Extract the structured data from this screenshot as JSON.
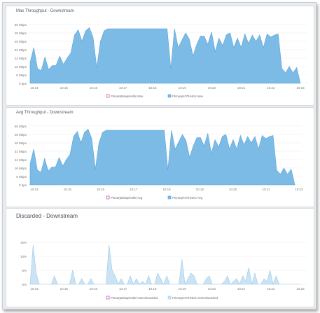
{
  "colors": {
    "accent": "#6fb2e2",
    "accent_fill": "#7cbbe6",
    "accent_light": "#cbe3f3",
    "legend_primary": "#c65ac7",
    "grid": "#eceef1",
    "axis_text": "#777"
  },
  "chart_data": [
    {
      "type": "area",
      "title": "Max Throughput - Downstream",
      "y_ticks": [
        "0 bps",
        "8 Mbps",
        "16 Mbps",
        "24 Mbps",
        "32 Mbps",
        "40 Mbps",
        "48 Mbps",
        "56 Mbps"
      ],
      "x_ticks": [
        "10:14",
        "10:15",
        "10:16",
        "10:17",
        "10:18",
        "10:19",
        "10:20",
        "10:21",
        "10:22",
        "10:23"
      ],
      "ylim": [
        0,
        56
      ],
      "series": [
        {
          "name": "PrimaryBelapriHdmi Max",
          "values": []
        },
        {
          "name": "PrimaryHOTHistric Max",
          "values": [
            20,
            34,
            14,
            12,
            25,
            13,
            17,
            17,
            26,
            18,
            24,
            29,
            46,
            51,
            40,
            50,
            53,
            44,
            15,
            40,
            50,
            52,
            52,
            52,
            52,
            52,
            52,
            52,
            52,
            52,
            52,
            52,
            52,
            52,
            52,
            52,
            52,
            52,
            14,
            52,
            34,
            41,
            48,
            42,
            26,
            37,
            45,
            45,
            37,
            49,
            30,
            43,
            36,
            46,
            48,
            34,
            43,
            34,
            47,
            38,
            46,
            40,
            46,
            34,
            47,
            44,
            46,
            47,
            14,
            10,
            16,
            10,
            15,
            0
          ]
        }
      ]
    },
    {
      "type": "area",
      "title": "Avg Throughput - Downstream",
      "y_ticks": [
        "0 bps",
        "8 Mbps",
        "16 Mbps",
        "24 Mbps",
        "32 Mbps",
        "40 Mbps",
        "48 Mbps",
        "56 Mbps"
      ],
      "x_ticks": [
        "10:14",
        "10:15",
        "10:16",
        "10:17",
        "10:18",
        "10:19",
        "10:20",
        "10:21",
        "10:22"
      ],
      "ylim": [
        0,
        56
      ],
      "series": [
        {
          "name": "PrimaryBelapriHdmi Avg",
          "values": []
        },
        {
          "name": "PrimaryHOTHistric Avg",
          "values": [
            20,
            34,
            14,
            12,
            25,
            13,
            17,
            17,
            26,
            18,
            24,
            29,
            46,
            51,
            40,
            50,
            53,
            44,
            15,
            40,
            50,
            52,
            52,
            52,
            52,
            52,
            52,
            52,
            52,
            52,
            52,
            52,
            52,
            52,
            52,
            52,
            52,
            52,
            14,
            52,
            34,
            41,
            48,
            42,
            26,
            37,
            45,
            45,
            37,
            49,
            30,
            43,
            36,
            46,
            48,
            34,
            43,
            34,
            47,
            38,
            46,
            40,
            46,
            34,
            47,
            44,
            46,
            47,
            14,
            10,
            16,
            10,
            15,
            0
          ]
        }
      ]
    },
    {
      "type": "area",
      "title": "Discarded - Downstream",
      "y_ticks": [
        "0%",
        "5%",
        "10%",
        "15%"
      ],
      "x_ticks": [
        "10:14",
        "10:15",
        "10:16",
        "10:17",
        "10:18",
        "10:19",
        "10:20",
        "10:21",
        "10:22",
        "10:23"
      ],
      "ylim": [
        0,
        15
      ],
      "series": [
        {
          "name": "PrimaryBelapriHdmi Gets Discarded",
          "values": []
        },
        {
          "name": "PrimaryHOTHistric Gets Discarded",
          "values": [
            0,
            14,
            4,
            0,
            0,
            0,
            0,
            0,
            3,
            0,
            0,
            0,
            0,
            0,
            5,
            0,
            0,
            2,
            0,
            0,
            2,
            0,
            0,
            0,
            0,
            0,
            14,
            5,
            3,
            0,
            2,
            0,
            0,
            3,
            0,
            2,
            0,
            1,
            0,
            3,
            0,
            0,
            4,
            2,
            0,
            3,
            0,
            0,
            0,
            0,
            9,
            0,
            2,
            4,
            3,
            0,
            0,
            0,
            2,
            3,
            0,
            0,
            0,
            0,
            1,
            3,
            0,
            1,
            2,
            0,
            3,
            1,
            6,
            0,
            4,
            0,
            0,
            2,
            1,
            5,
            0,
            3,
            0,
            0,
            0,
            0,
            0,
            0,
            0,
            0
          ]
        }
      ]
    }
  ]
}
